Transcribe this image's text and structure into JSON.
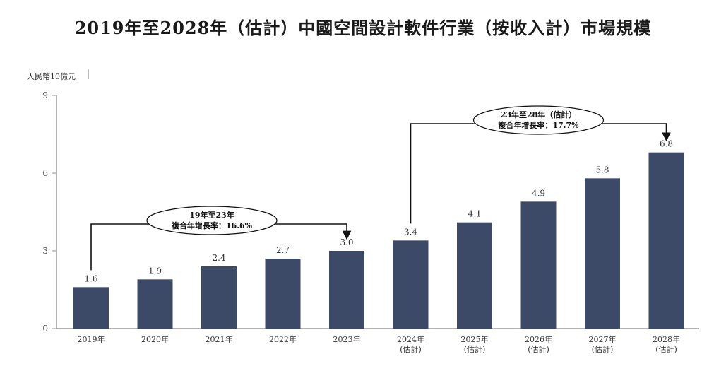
{
  "chart_data": {
    "type": "bar",
    "title": "2019年至2028年（估計）中國空間設計軟件行業（按收入計）市場規模",
    "ylabel": "人民幣10億元",
    "ylim": [
      0,
      9
    ],
    "yticks": [
      "0",
      "3",
      "6",
      "9"
    ],
    "grid": false,
    "bar_color": "#3c4a68",
    "categories": [
      {
        "year": "2019年",
        "note": ""
      },
      {
        "year": "2020年",
        "note": ""
      },
      {
        "year": "2021年",
        "note": ""
      },
      {
        "year": "2022年",
        "note": ""
      },
      {
        "year": "2023年",
        "note": ""
      },
      {
        "year": "2024年",
        "note": "(估計)"
      },
      {
        "year": "2025年",
        "note": "(估計)"
      },
      {
        "year": "2026年",
        "note": "(估計)"
      },
      {
        "year": "2027年",
        "note": "(估計)"
      },
      {
        "year": "2028年",
        "note": "(估計)"
      }
    ],
    "values": [
      1.6,
      1.9,
      2.4,
      2.7,
      3.0,
      3.4,
      4.1,
      4.9,
      5.8,
      6.8
    ],
    "value_labels": [
      "1.6",
      "1.9",
      "2.4",
      "2.7",
      "3.0",
      "3.4",
      "4.1",
      "4.9",
      "5.8",
      "6.8"
    ],
    "annotations": [
      {
        "from_index": 0,
        "to_index": 4,
        "line1": "19年至23年",
        "line2": "複合年增長率：16.6%"
      },
      {
        "from_index": 5,
        "to_index": 9,
        "line1": "23年至28年（估計）",
        "line2": "複合年增長率：17.7%"
      }
    ]
  }
}
